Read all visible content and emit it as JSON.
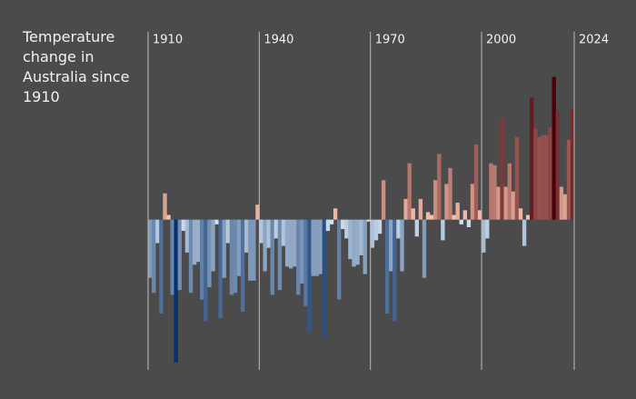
{
  "chart_data": {
    "type": "bar",
    "title": "Temperature change in Australia since 1910",
    "categories": [
      "1910",
      null,
      null,
      null,
      null,
      null,
      null,
      null,
      null,
      null,
      null,
      null,
      null,
      null,
      null,
      null,
      null,
      null,
      null,
      null,
      null,
      null,
      null,
      null,
      null,
      null,
      null,
      null,
      null,
      null,
      "1940",
      null,
      null,
      null,
      null,
      null,
      null,
      null,
      null,
      null,
      null,
      null,
      null,
      null,
      null,
      null,
      null,
      null,
      null,
      null,
      null,
      null,
      null,
      null,
      null,
      null,
      null,
      null,
      null,
      null,
      "1970",
      null,
      null,
      null,
      null,
      null,
      null,
      null,
      null,
      null,
      null,
      null,
      null,
      null,
      null,
      null,
      null,
      null,
      null,
      null,
      null,
      null,
      null,
      null,
      null,
      null,
      null,
      null,
      null,
      null,
      "2000",
      null,
      null,
      null,
      null,
      null,
      null,
      null,
      null,
      null,
      null,
      null,
      null,
      null,
      null,
      null,
      null,
      null,
      null,
      null,
      null,
      null,
      null,
      null,
      "2024"
    ],
    "values": [
      -0.62,
      -0.78,
      -0.25,
      -1.0,
      0.28,
      0.05,
      -0.8,
      -1.52,
      -0.75,
      -0.12,
      -0.35,
      -0.78,
      -0.48,
      -0.45,
      -0.85,
      -1.08,
      -0.72,
      -0.55,
      -0.05,
      -1.05,
      -0.62,
      -0.25,
      -0.8,
      -0.78,
      -0.6,
      -0.98,
      -0.35,
      -0.65,
      -0.65,
      0.16,
      -0.25,
      -0.55,
      -0.3,
      -0.8,
      -0.2,
      -0.75,
      -0.28,
      -0.5,
      -0.52,
      -0.5,
      -0.8,
      -0.68,
      -0.92,
      -1.2,
      -0.6,
      -0.6,
      -0.58,
      -1.26,
      -0.12,
      -0.05,
      0.12,
      -0.85,
      -0.1,
      -0.2,
      -0.42,
      -0.5,
      -0.48,
      -0.38,
      -0.58,
      -0.02,
      -0.3,
      -0.22,
      -0.15,
      0.42,
      -1.0,
      -0.55,
      -1.08,
      -0.2,
      -0.55,
      0.22,
      0.6,
      0.12,
      -0.18,
      0.22,
      -0.62,
      0.08,
      0.05,
      0.42,
      0.7,
      -0.22,
      0.38,
      0.55,
      0.05,
      0.18,
      -0.05,
      0.1,
      -0.08,
      0.38,
      0.8,
      0.1,
      -0.35,
      -0.2,
      0.6,
      0.58,
      0.35,
      1.08,
      0.35,
      0.6,
      0.3,
      0.88,
      0.12,
      -0.28,
      0.05,
      1.3,
      0.97,
      0.88,
      0.9,
      0.9,
      0.98,
      1.52,
      1.15,
      0.35,
      0.27,
      0.85,
      1.18
    ],
    "ylim": [
      -1.6,
      2.0
    ],
    "palette": {
      "cold": [
        "#d6e6f4",
        "#08306b"
      ],
      "warm": [
        "#fcc5b0",
        "#4a0008"
      ]
    }
  }
}
